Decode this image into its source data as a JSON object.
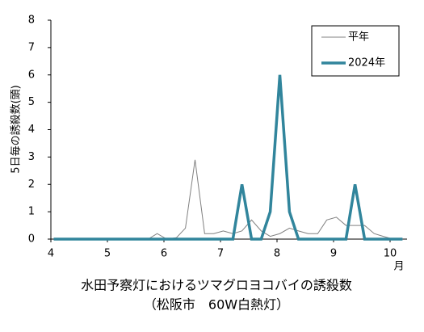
{
  "chart_data": {
    "type": "line",
    "title": "水田予察灯におけるツマグロヨコバイの誘殺数",
    "subtitle": "（松阪市　60W白熱灯）",
    "y_label": "5日毎の誘殺数(頭)",
    "x_unit": "月",
    "x": [
      4.05,
      4.22,
      4.38,
      4.55,
      4.72,
      4.88,
      5.05,
      5.22,
      5.38,
      5.55,
      5.72,
      5.88,
      6.05,
      6.22,
      6.38,
      6.55,
      6.72,
      6.88,
      7.05,
      7.22,
      7.38,
      7.55,
      7.72,
      7.88,
      8.05,
      8.22,
      8.38,
      8.55,
      8.72,
      8.88,
      9.05,
      9.22,
      9.38,
      9.55,
      9.72,
      9.88,
      10.05,
      10.22
    ],
    "series": [
      {
        "name": "平年",
        "color": "#808080",
        "width": 1,
        "values": [
          0,
          0,
          0,
          0,
          0,
          0,
          0,
          0,
          0,
          0,
          0,
          0.2,
          0,
          0.05,
          0.4,
          2.9,
          0.2,
          0.2,
          0.3,
          0.2,
          0.3,
          0.7,
          0.3,
          0.1,
          0.2,
          0.4,
          0.3,
          0.2,
          0.2,
          0.7,
          0.8,
          0.5,
          0.5,
          0.5,
          0.2,
          0.1,
          0,
          0
        ]
      },
      {
        "name": "2024年",
        "color": "#31859c",
        "width": 3.5,
        "values": [
          0,
          0,
          0,
          0,
          0,
          0,
          0,
          0,
          0,
          0,
          0,
          0,
          0,
          0,
          0,
          0,
          0,
          0,
          0,
          0,
          2,
          0,
          0,
          1,
          6,
          1,
          0,
          0,
          0,
          0,
          0,
          0,
          2,
          0,
          0,
          0,
          0,
          0
        ]
      }
    ],
    "xlim": [
      4,
      10.3
    ],
    "xticks": [
      4,
      5,
      6,
      7,
      8,
      9,
      10
    ],
    "ylim": [
      0,
      8
    ],
    "yticks": [
      0,
      1,
      2,
      3,
      4,
      5,
      6,
      7,
      8
    ],
    "legend": "upper right"
  }
}
